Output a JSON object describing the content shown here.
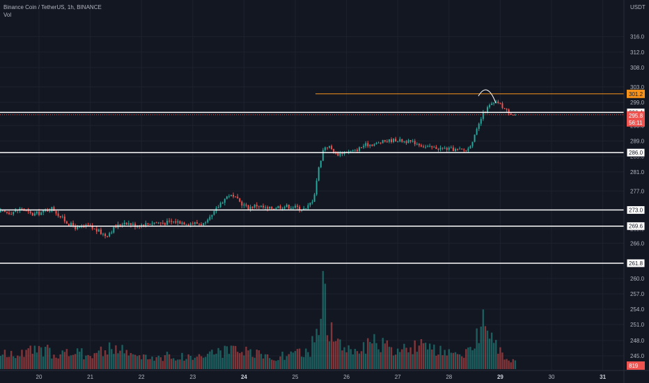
{
  "header": {
    "symbol": "Binance Coin / TetherUS, 1h, BINANCE",
    "indicator": "Vol"
  },
  "colors": {
    "background": "#131722",
    "up": "#26a69a",
    "down": "#ef5350",
    "level_line": "#ffffff",
    "high_line": "#f7931a",
    "text": "#b2b5be",
    "grid": "#1e222d"
  },
  "chart_data": {
    "type": "candlestick",
    "title": "Binance Coin / TetherUS, 1h, BINANCE",
    "y_unit": "USDT",
    "y_ticks": [
      316.0,
      312.0,
      308.0,
      303.0,
      299.0,
      293.0,
      289.0,
      285.0,
      281.0,
      277.0,
      273.0,
      269.0,
      266.0,
      263.0,
      260.0,
      257.0,
      254.0,
      251.0,
      248.0,
      245.0
    ],
    "x_ticks": [
      {
        "label": "20",
        "bold": false
      },
      {
        "label": "21",
        "bold": false
      },
      {
        "label": "22",
        "bold": false
      },
      {
        "label": "23",
        "bold": false
      },
      {
        "label": "24",
        "bold": true
      },
      {
        "label": "25",
        "bold": false
      },
      {
        "label": "26",
        "bold": false
      },
      {
        "label": "27",
        "bold": false
      },
      {
        "label": "28",
        "bold": false
      },
      {
        "label": "29",
        "bold": true
      },
      {
        "label": "30",
        "bold": false
      },
      {
        "label": "31",
        "bold": true
      }
    ],
    "horizontal_levels": [
      {
        "value": 301.2,
        "label": "301.2",
        "kind": "high"
      },
      {
        "value": 296.4,
        "label": "296.4",
        "kind": "level"
      },
      {
        "value": 286.0,
        "label": "286.0",
        "kind": "level"
      },
      {
        "value": 273.0,
        "label": "273.0",
        "kind": "level"
      },
      {
        "value": 269.6,
        "label": "269.6",
        "kind": "level"
      },
      {
        "value": 261.8,
        "label": "261.8",
        "kind": "level"
      }
    ],
    "last_price": {
      "value": 295.8,
      "label": "295.8"
    },
    "last_volume": {
      "label": "819"
    },
    "countdown": {
      "label": "56:11"
    },
    "price_path": [
      [
        19.5,
        272.5
      ],
      [
        19.7,
        273.3
      ],
      [
        19.9,
        272.0
      ],
      [
        20.1,
        272.5
      ],
      [
        20.3,
        273.4
      ],
      [
        20.45,
        271.7
      ],
      [
        20.6,
        270.2
      ],
      [
        20.8,
        269.1
      ],
      [
        21.0,
        269.6
      ],
      [
        21.2,
        268.5
      ],
      [
        21.35,
        267.6
      ],
      [
        21.5,
        269.1
      ],
      [
        21.7,
        270.5
      ],
      [
        21.9,
        269.8
      ],
      [
        22.1,
        270.0
      ],
      [
        22.3,
        270.4
      ],
      [
        22.5,
        270.3
      ],
      [
        22.7,
        270.6
      ],
      [
        22.9,
        270.3
      ],
      [
        23.1,
        270.2
      ],
      [
        23.3,
        270.0
      ],
      [
        23.45,
        272.3
      ],
      [
        23.6,
        274.7
      ],
      [
        23.75,
        276.2
      ],
      [
        23.9,
        275.2
      ],
      [
        24.1,
        273.5
      ],
      [
        24.3,
        274.0
      ],
      [
        24.5,
        273.2
      ],
      [
        24.7,
        273.7
      ],
      [
        24.9,
        273.8
      ],
      [
        25.1,
        273.5
      ],
      [
        25.25,
        273.1
      ],
      [
        25.4,
        275.5
      ],
      [
        25.5,
        282.0
      ],
      [
        25.6,
        287.5
      ],
      [
        25.7,
        287.6
      ],
      [
        25.85,
        285.5
      ],
      [
        26.0,
        286.2
      ],
      [
        26.2,
        286.4
      ],
      [
        26.4,
        288.0
      ],
      [
        26.6,
        288.2
      ],
      [
        26.8,
        289.0
      ],
      [
        27.0,
        289.3
      ],
      [
        27.2,
        288.9
      ],
      [
        27.4,
        288.5
      ],
      [
        27.6,
        287.4
      ],
      [
        27.8,
        287.2
      ],
      [
        28.0,
        287.0
      ],
      [
        28.2,
        286.7
      ],
      [
        28.4,
        286.6
      ],
      [
        28.55,
        290.5
      ],
      [
        28.7,
        296.0
      ],
      [
        28.85,
        298.4
      ],
      [
        29.0,
        299.0
      ],
      [
        29.15,
        297.0
      ],
      [
        29.3,
        295.8
      ]
    ],
    "volume_profile": [
      [
        19.5,
        0.18
      ],
      [
        20.0,
        0.23
      ],
      [
        20.5,
        0.2
      ],
      [
        21.0,
        0.19
      ],
      [
        21.5,
        0.26
      ],
      [
        22.0,
        0.14
      ],
      [
        22.5,
        0.16
      ],
      [
        23.0,
        0.15
      ],
      [
        23.5,
        0.22
      ],
      [
        24.0,
        0.21
      ],
      [
        24.5,
        0.15
      ],
      [
        25.0,
        0.18
      ],
      [
        25.3,
        0.22
      ],
      [
        25.45,
        0.6
      ],
      [
        25.55,
        1.0
      ],
      [
        25.65,
        0.55
      ],
      [
        25.8,
        0.3
      ],
      [
        26.0,
        0.26
      ],
      [
        26.3,
        0.25
      ],
      [
        26.6,
        0.33
      ],
      [
        27.0,
        0.2
      ],
      [
        27.3,
        0.3
      ],
      [
        27.6,
        0.25
      ],
      [
        28.0,
        0.18
      ],
      [
        28.3,
        0.15
      ],
      [
        28.5,
        0.35
      ],
      [
        28.7,
        0.7
      ],
      [
        28.85,
        0.5
      ],
      [
        29.0,
        0.2
      ],
      [
        29.3,
        0.08
      ]
    ]
  }
}
